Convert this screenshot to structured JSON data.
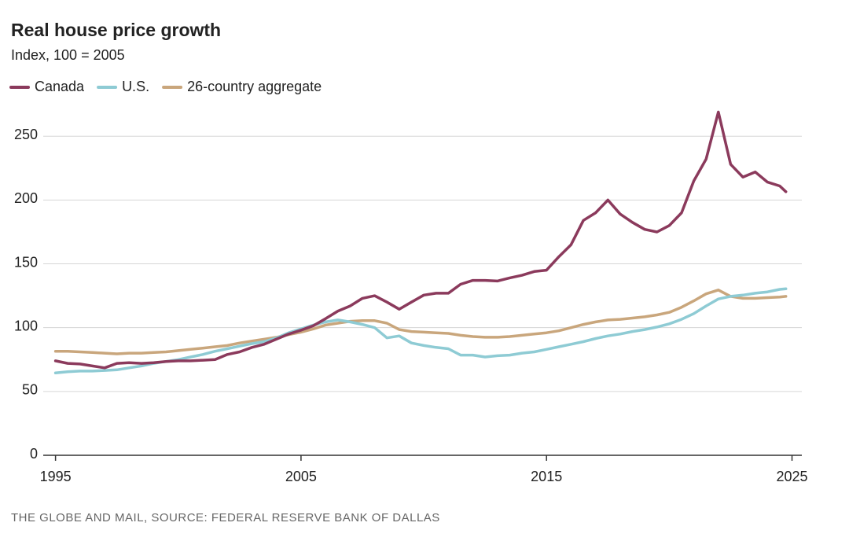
{
  "chart_data": {
    "type": "line",
    "title": "Real house price growth",
    "subtitle": "Index, 100 = 2005",
    "source": "THE GLOBE AND MAIL, SOURCE: FEDERAL RESERVE BANK OF DALLAS",
    "x": [
      1995,
      1995.5,
      1996,
      1996.5,
      1997,
      1997.5,
      1998,
      1998.5,
      1999,
      1999.5,
      2000,
      2000.5,
      2001,
      2001.5,
      2002,
      2002.5,
      2003,
      2003.5,
      2004,
      2004.5,
      2005,
      2005.5,
      2006,
      2006.5,
      2007,
      2007.5,
      2008,
      2008.5,
      2009,
      2009.5,
      2010,
      2010.5,
      2011,
      2011.5,
      2012,
      2012.5,
      2013,
      2013.5,
      2014,
      2014.5,
      2015,
      2015.5,
      2016,
      2016.5,
      2017,
      2017.5,
      2018,
      2018.5,
      2019,
      2019.5,
      2020,
      2020.5,
      2021,
      2021.5,
      2022,
      2022.5,
      2023,
      2023.5,
      2024,
      2024.5,
      2024.75
    ],
    "series": [
      {
        "name": "Canada",
        "color": "#8b3a5c",
        "values": [
          74,
          72,
          71.5,
          70,
          68.5,
          72,
          72.5,
          72,
          72.5,
          73.5,
          74,
          74,
          74.5,
          75,
          79,
          81,
          84.5,
          87,
          91,
          95,
          98,
          101.5,
          107,
          113,
          117,
          123,
          125,
          120,
          114.5,
          120,
          125.5,
          127,
          127,
          134,
          137,
          137,
          136.5,
          139,
          141,
          144,
          145,
          155.5,
          165,
          184,
          190,
          200,
          189,
          182.5,
          177,
          175,
          180,
          190,
          215,
          232,
          269,
          228,
          218,
          222,
          214,
          211,
          206.5
        ]
      },
      {
        "name": "U.S.",
        "color": "#8ecbd4",
        "values": [
          64.5,
          65.5,
          66,
          66,
          66.5,
          67,
          68.5,
          70,
          72,
          73.5,
          75,
          77,
          79,
          81.5,
          83.5,
          85.5,
          87.5,
          89,
          92,
          96,
          99,
          102,
          104.5,
          106,
          104.5,
          102.5,
          100,
          92,
          93.5,
          88,
          86,
          84.5,
          83.5,
          78.5,
          78.5,
          77,
          78,
          78.5,
          80,
          81,
          83,
          85,
          87,
          89,
          91.5,
          93.5,
          95,
          97,
          98.5,
          100.5,
          103,
          106.5,
          111,
          117,
          122.5,
          124.5,
          125.5,
          127,
          128,
          130,
          130.5
        ]
      },
      {
        "name": "26-country aggregate",
        "color": "#c9a67c",
        "values": [
          81.5,
          81.5,
          81,
          80.5,
          80,
          79.5,
          80,
          80,
          80.5,
          81,
          82,
          83,
          84,
          85,
          86,
          88,
          89.5,
          91,
          92.5,
          94.5,
          96.5,
          99,
          102,
          103.5,
          105,
          105.5,
          105.5,
          103.5,
          98.5,
          97,
          96.5,
          96,
          95.5,
          94,
          93,
          92.5,
          92.5,
          93,
          94,
          95,
          96,
          97.5,
          100,
          102.5,
          104.5,
          106,
          106.5,
          107.5,
          108.5,
          110,
          112,
          116,
          121,
          126.5,
          129.5,
          124.5,
          123,
          123,
          123.5,
          124,
          124.5
        ]
      }
    ],
    "xlim": [
      1994.5,
      2025.4
    ],
    "ylim": [
      0,
      268
    ],
    "xticks": [
      1995,
      2005,
      2015,
      2025
    ],
    "yticks": [
      0,
      50,
      100,
      150,
      200,
      250
    ],
    "grid": true,
    "legend": "top"
  }
}
